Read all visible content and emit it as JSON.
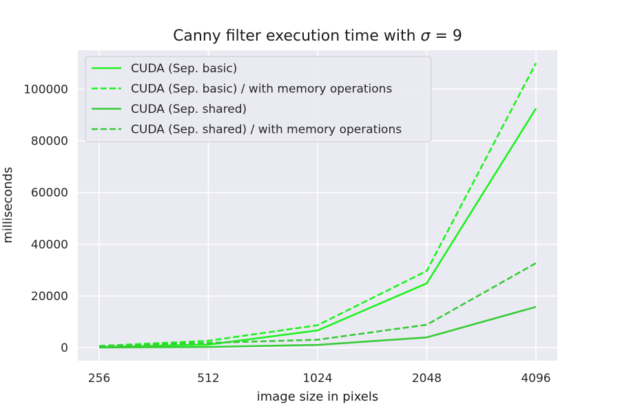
{
  "chart_data": {
    "type": "line",
    "title_main": "Canny filter execution time with ",
    "title_sigma": "σ",
    "title_eq": " = 9",
    "xlabel": "image size in pixels",
    "ylabel": "milliseconds",
    "categories": [
      "256",
      "512",
      "1024",
      "2048",
      "4096"
    ],
    "y_ticks": [
      "0",
      "20000",
      "40000",
      "60000",
      "80000",
      "100000"
    ],
    "ylim": [
      -5000,
      115000
    ],
    "grid": true,
    "legend_position": "top-left",
    "colors": {
      "bright": "#1cf21c",
      "medium": "#36cc36",
      "plot_bg": "#eaeaf2",
      "grid": "#ffffff"
    },
    "series": [
      {
        "name": "CUDA (Sep. basic)",
        "values": [
          300,
          1200,
          6700,
          24900,
          92500
        ],
        "dashed": false,
        "color": "bright"
      },
      {
        "name": "CUDA (Sep. basic) / with memory operations",
        "values": [
          700,
          2700,
          8700,
          29700,
          110000
        ],
        "dashed": true,
        "color": "bright"
      },
      {
        "name": "CUDA (Sep. shared)",
        "values": [
          100,
          300,
          1100,
          4000,
          15800
        ],
        "dashed": false,
        "color": "medium"
      },
      {
        "name": "CUDA (Sep. shared) / with memory operations",
        "values": [
          500,
          1900,
          3100,
          8900,
          32700
        ],
        "dashed": true,
        "color": "medium"
      }
    ]
  }
}
